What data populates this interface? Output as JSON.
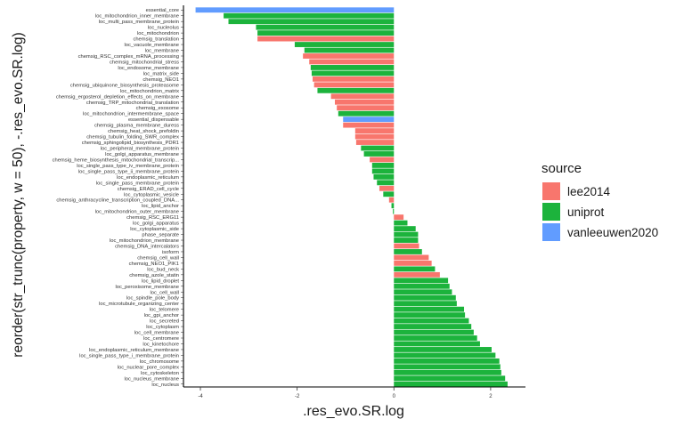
{
  "chart_data": {
    "type": "bar",
    "orientation": "horizontal",
    "xlabel": ".res_evo.SR.log",
    "ylabel": "reorder(str_trunc(property, w = 50), -.res_evo.SR.log)",
    "xlim": [
      -4.35,
      2.72
    ],
    "x_ticks": [
      -4,
      -2,
      0,
      2
    ],
    "grid": false,
    "legend": {
      "title": "source",
      "position": "right",
      "entries": [
        {
          "name": "lee2014",
          "color": "#F8766D"
        },
        {
          "name": "uniprot",
          "color": "#1CB33C"
        },
        {
          "name": "vanleeuwen2020",
          "color": "#619CFF"
        }
      ]
    },
    "bars": [
      {
        "label": "essential_core",
        "value": -4.1,
        "source": "vanleeuwen2020"
      },
      {
        "label": "loc_mitochondrion_inner_membrane",
        "value": -3.52,
        "source": "uniprot"
      },
      {
        "label": "loc_multi_pass_membrane_protein",
        "value": -3.42,
        "source": "uniprot"
      },
      {
        "label": "loc_nucleolus",
        "value": -2.85,
        "source": "uniprot"
      },
      {
        "label": "loc_mitochondrion",
        "value": -2.82,
        "source": "uniprot"
      },
      {
        "label": "chemsig_translation",
        "value": -2.82,
        "source": "lee2014"
      },
      {
        "label": "loc_vacuole_membrane",
        "value": -2.05,
        "source": "uniprot"
      },
      {
        "label": "loc_membrane",
        "value": -1.85,
        "source": "uniprot"
      },
      {
        "label": "chemsig_RSC_complex_mRNA_processing",
        "value": -1.88,
        "source": "lee2014"
      },
      {
        "label": "chemsig_mitochondrial_stress",
        "value": -1.75,
        "source": "lee2014"
      },
      {
        "label": "loc_endosome_membrane",
        "value": -1.72,
        "source": "uniprot"
      },
      {
        "label": "loc_matrix_side",
        "value": -1.7,
        "source": "uniprot"
      },
      {
        "label": "chemsig_NEO1",
        "value": -1.68,
        "source": "lee2014"
      },
      {
        "label": "chemsig_ubiquinone_biosynthesis_proteasome",
        "value": -1.65,
        "source": "lee2014"
      },
      {
        "label": "loc_mitochondrion_matrix",
        "value": -1.58,
        "source": "uniprot"
      },
      {
        "label": "chemsig_ergosterol_depletion_effects_on_membrane",
        "value": -1.3,
        "source": "lee2014"
      },
      {
        "label": "chemsig_TRP_mitochondrial_translation",
        "value": -1.22,
        "source": "lee2014"
      },
      {
        "label": "chemsig_exosome",
        "value": -1.18,
        "source": "lee2014"
      },
      {
        "label": "loc_mitochondrion_intermembrane_space",
        "value": -1.15,
        "source": "uniprot"
      },
      {
        "label": "essential_dispensable",
        "value": -1.05,
        "source": "vanleeuwen2020"
      },
      {
        "label": "chemsig_plasma_membrane_duress",
        "value": -1.05,
        "source": "lee2014"
      },
      {
        "label": "chemsig_heat_shock_prefoldin",
        "value": -0.8,
        "source": "lee2014"
      },
      {
        "label": "chemsig_tubulin_folding_SWR_complex",
        "value": -0.8,
        "source": "lee2014"
      },
      {
        "label": "chemsig_sphingolipid_biosynthesis_PDR1",
        "value": -0.78,
        "source": "lee2014"
      },
      {
        "label": "loc_peripheral_membrane_protein",
        "value": -0.68,
        "source": "uniprot"
      },
      {
        "label": "loc_golgi_apparatus_membrane",
        "value": -0.62,
        "source": "uniprot"
      },
      {
        "label": "chemsig_heme_biosynthesis_mitochondrial_transcrip...",
        "value": -0.5,
        "source": "lee2014"
      },
      {
        "label": "loc_single_pass_type_iv_membrane_protein",
        "value": -0.45,
        "source": "uniprot"
      },
      {
        "label": "loc_single_pass_type_ii_membrane_protein",
        "value": -0.45,
        "source": "uniprot"
      },
      {
        "label": "loc_endoplasmic_reticulum",
        "value": -0.42,
        "source": "uniprot"
      },
      {
        "label": "loc_single_pass_membrane_protein",
        "value": -0.35,
        "source": "uniprot"
      },
      {
        "label": "chemsig_ERAD_cell_cycle",
        "value": -0.3,
        "source": "lee2014"
      },
      {
        "label": "loc_cytoplasmic_vesicle",
        "value": -0.22,
        "source": "uniprot"
      },
      {
        "label": "chemsig_anthracycline_transcription_coupled_DNA...",
        "value": -0.1,
        "source": "lee2014"
      },
      {
        "label": "loc_lipid_anchor",
        "value": -0.05,
        "source": "uniprot"
      },
      {
        "label": "loc_mitochondrion_outer_membrane",
        "value": -0.02,
        "source": "uniprot"
      },
      {
        "label": "chemsig_RSC_ERG11",
        "value": 0.2,
        "source": "lee2014"
      },
      {
        "label": "loc_golgi_apparatus",
        "value": 0.28,
        "source": "uniprot"
      },
      {
        "label": "loc_cytoplasmic_side",
        "value": 0.45,
        "source": "uniprot"
      },
      {
        "label": "phase_separate",
        "value": 0.5,
        "source": "uniprot"
      },
      {
        "label": "loc_mitochondrion_membrane",
        "value": 0.5,
        "source": "uniprot"
      },
      {
        "label": "chemsig_DNA_intercalators",
        "value": 0.52,
        "source": "lee2014"
      },
      {
        "label": "isoform",
        "value": 0.58,
        "source": "uniprot"
      },
      {
        "label": "chemsig_cell_wall",
        "value": 0.72,
        "source": "lee2014"
      },
      {
        "label": "chemsig_NEO1_PIK1",
        "value": 0.78,
        "source": "lee2014"
      },
      {
        "label": "loc_bud_neck",
        "value": 0.85,
        "source": "uniprot"
      },
      {
        "label": "chemsig_azole_statin",
        "value": 0.95,
        "source": "lee2014"
      },
      {
        "label": "loc_lipid_droplet",
        "value": 1.12,
        "source": "uniprot"
      },
      {
        "label": "loc_peroxisome_membrane",
        "value": 1.15,
        "source": "uniprot"
      },
      {
        "label": "loc_cell_wall",
        "value": 1.2,
        "source": "uniprot"
      },
      {
        "label": "loc_spindle_pole_body",
        "value": 1.28,
        "source": "uniprot"
      },
      {
        "label": "loc_microtubule_organizing_center",
        "value": 1.3,
        "source": "uniprot"
      },
      {
        "label": "loc_telomere",
        "value": 1.45,
        "source": "uniprot"
      },
      {
        "label": "loc_gpi_anchor",
        "value": 1.47,
        "source": "uniprot"
      },
      {
        "label": "loc_secreted",
        "value": 1.55,
        "source": "uniprot"
      },
      {
        "label": "loc_cytoplasm",
        "value": 1.6,
        "source": "uniprot"
      },
      {
        "label": "loc_cell_membrane",
        "value": 1.65,
        "source": "uniprot"
      },
      {
        "label": "loc_centromere",
        "value": 1.72,
        "source": "uniprot"
      },
      {
        "label": "loc_kinetochore",
        "value": 1.78,
        "source": "uniprot"
      },
      {
        "label": "loc_endoplasmic_reticulum_membrane",
        "value": 2.02,
        "source": "uniprot"
      },
      {
        "label": "loc_single_pass_type_i_membrane_protein",
        "value": 2.1,
        "source": "uniprot"
      },
      {
        "label": "loc_chromosome",
        "value": 2.18,
        "source": "uniprot"
      },
      {
        "label": "loc_nuclear_pore_complex",
        "value": 2.2,
        "source": "uniprot"
      },
      {
        "label": "loc_cytoskeleton",
        "value": 2.22,
        "source": "uniprot"
      },
      {
        "label": "loc_nucleus_membrane",
        "value": 2.3,
        "source": "uniprot"
      },
      {
        "label": "loc_nucleus",
        "value": 2.35,
        "source": "uniprot"
      }
    ]
  }
}
